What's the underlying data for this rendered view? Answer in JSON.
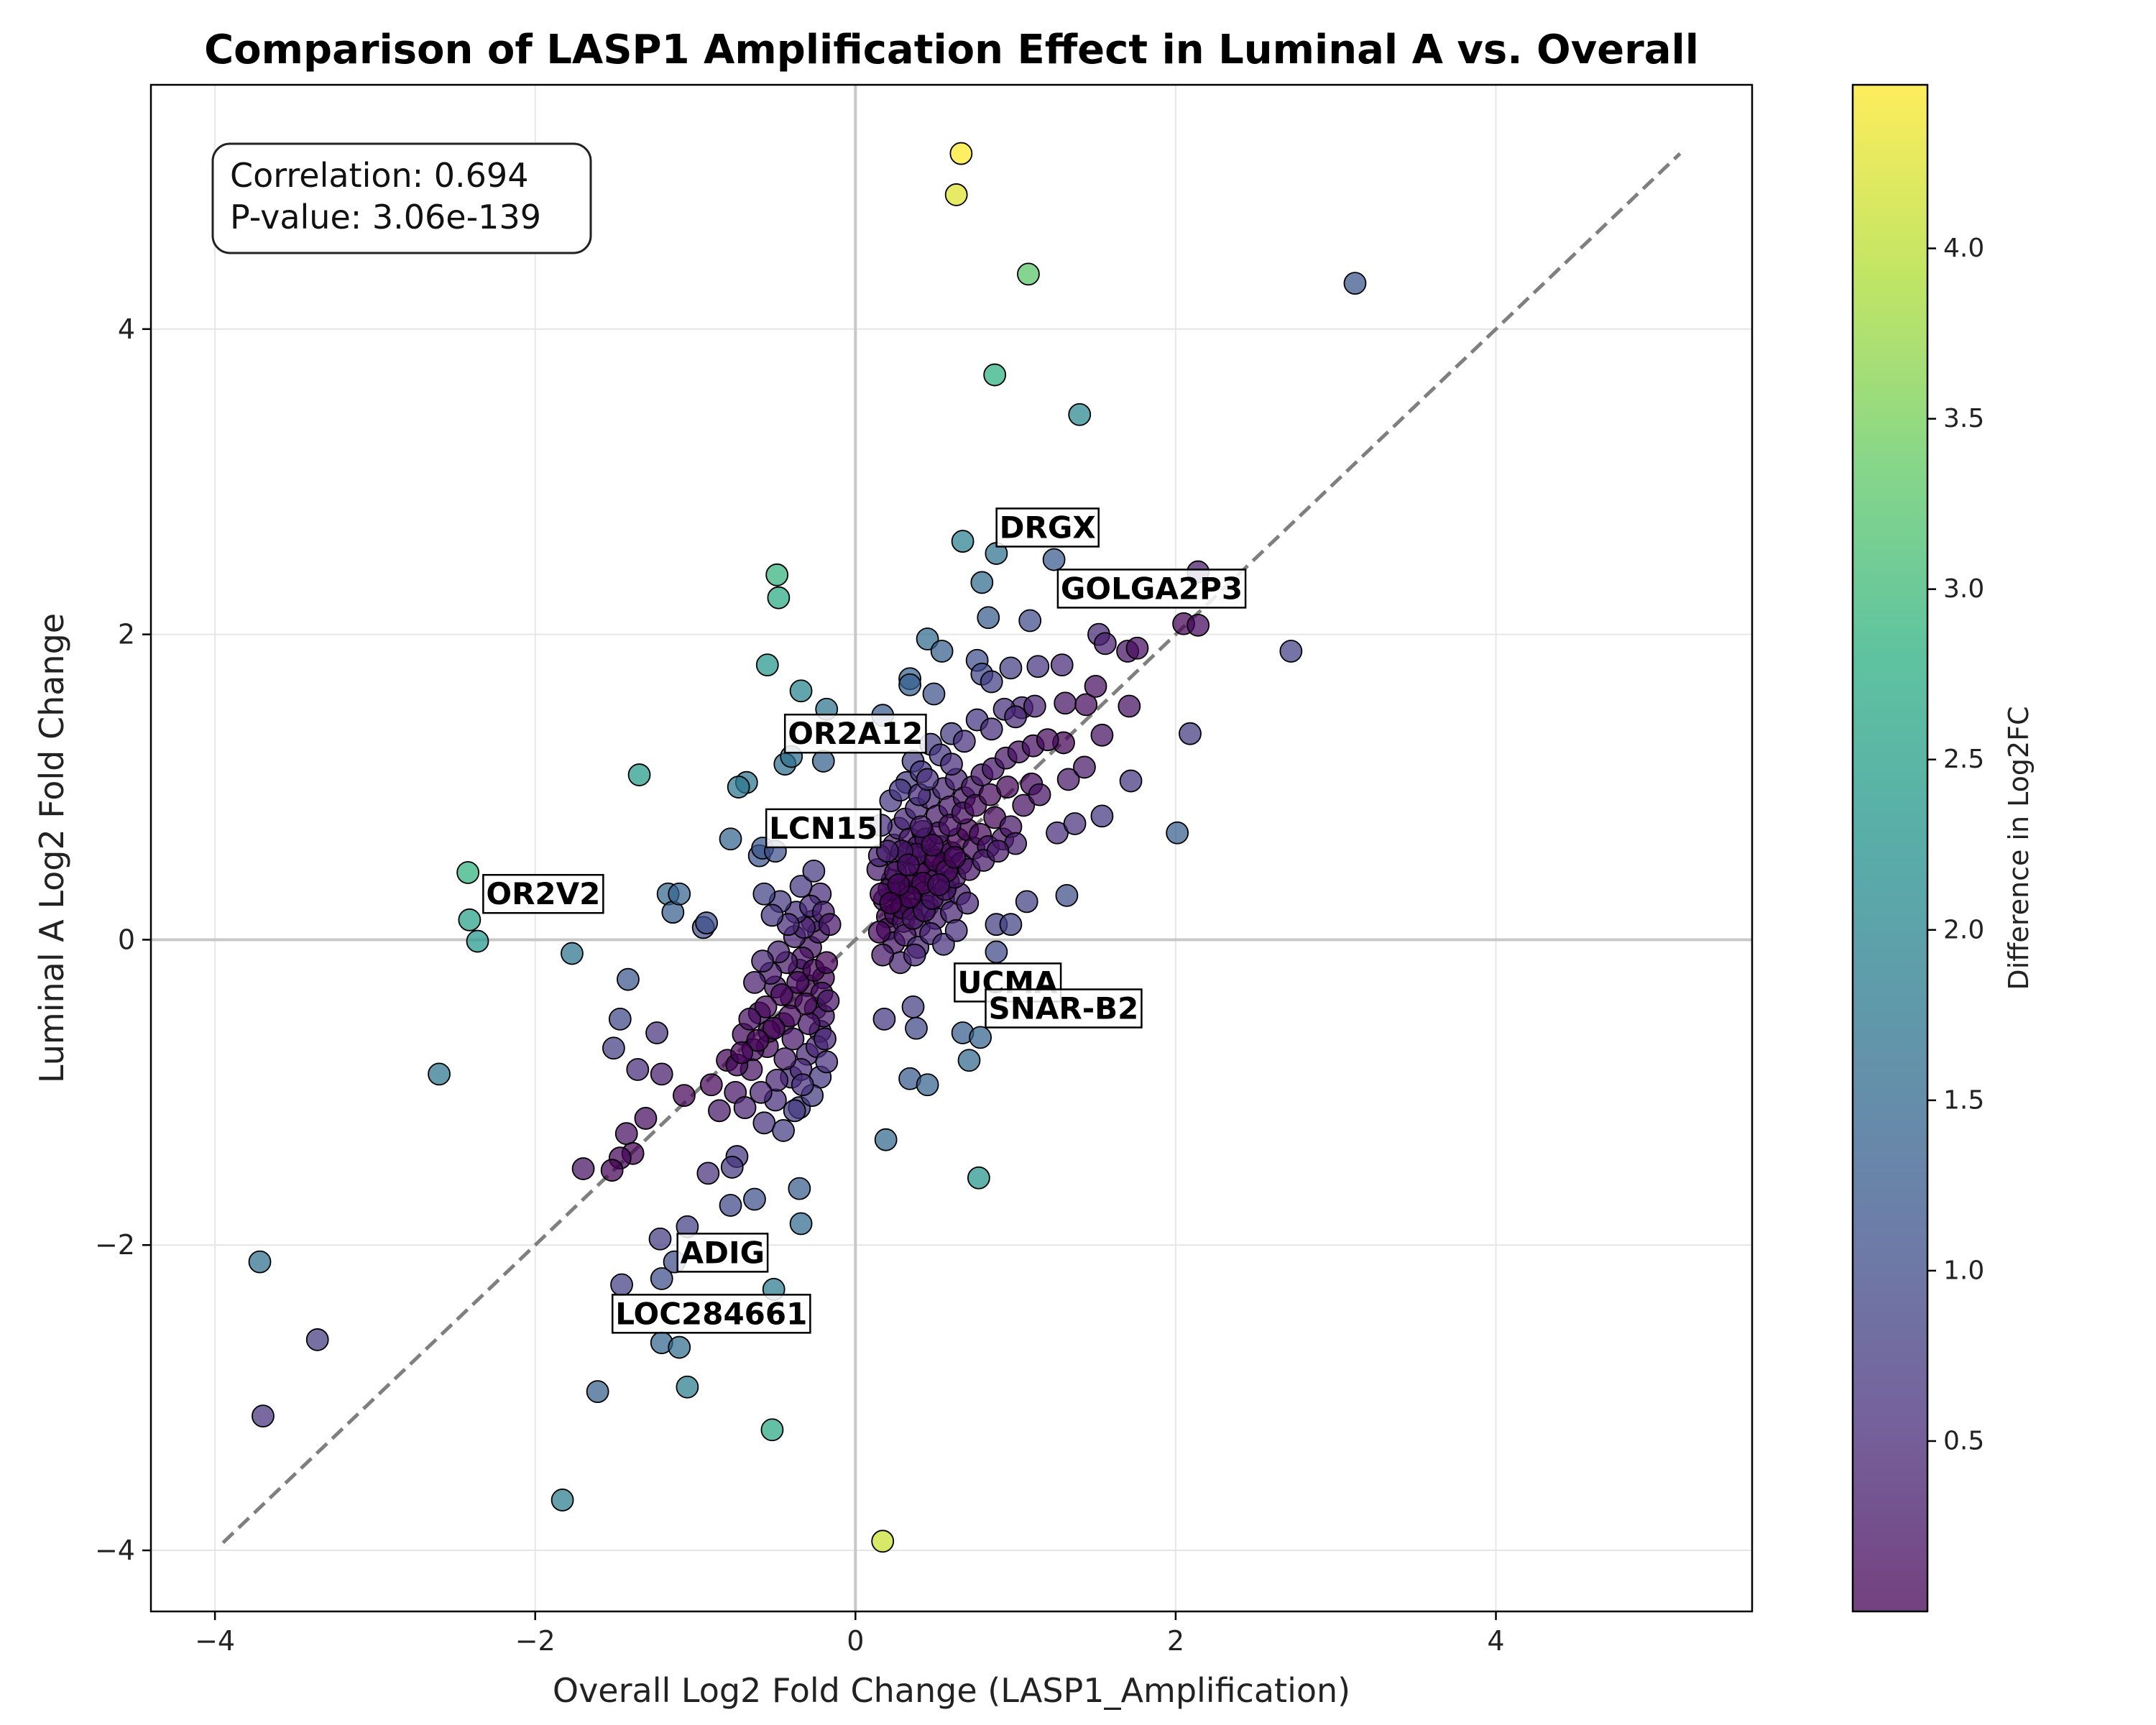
{
  "chart_data": {
    "type": "scatter",
    "title": "Comparison of LASP1 Amplification Effect in Luminal A vs. Overall",
    "xlabel": "Overall Log2 Fold Change (LASP1_Amplification)",
    "ylabel": "Luminal A Log2 Fold Change",
    "xlim": [
      -4.4,
      5.6
    ],
    "ylim": [
      -4.4,
      5.6
    ],
    "x_ticks": [
      -4,
      -2,
      0,
      2,
      4
    ],
    "y_ticks": [
      -4,
      -2,
      0,
      2,
      4
    ],
    "x_tick_labels": [
      "−4",
      "−2",
      "0",
      "2",
      "4"
    ],
    "y_tick_labels": [
      "−4",
      "−2",
      "0",
      "2",
      "4"
    ],
    "grid": true,
    "reference_line": {
      "style": "dashed",
      "from": [
        -3.95,
        -3.95
      ],
      "to": [
        5.15,
        5.15
      ],
      "color": "#7f7f7f"
    },
    "zero_lines": true,
    "stats_box": {
      "lines": [
        "Correlation: 0.694",
        "P-value: 3.06e-139"
      ]
    },
    "colorbar": {
      "label": "Difference in Log2FC",
      "colormap": "viridis",
      "range": [
        0.0,
        4.48
      ],
      "ticks": [
        0.5,
        1.0,
        1.5,
        2.0,
        2.5,
        3.0,
        3.5,
        4.0
      ],
      "tick_labels": [
        "0.5",
        "1.0",
        "1.5",
        "2.0",
        "2.5",
        "3.0",
        "3.5",
        "4.0"
      ]
    },
    "annotations": [
      {
        "text": "DRGX",
        "x": 1.2,
        "y": 2.7
      },
      {
        "text": "GOLGA2P3",
        "x": 1.85,
        "y": 2.3
      },
      {
        "text": "OR2A12",
        "x": 0.0,
        "y": 1.35
      },
      {
        "text": "LCN15",
        "x": -0.2,
        "y": 0.73
      },
      {
        "text": "OR2V2",
        "x": -1.95,
        "y": 0.3
      },
      {
        "text": "UCMA",
        "x": 0.95,
        "y": -0.28
      },
      {
        "text": "SNAR-B2",
        "x": 1.3,
        "y": -0.45
      },
      {
        "text": "ADIG",
        "x": -0.83,
        "y": -2.05
      },
      {
        "text": "LOC284661",
        "x": -0.9,
        "y": -2.45
      }
    ],
    "points": [
      [
        0.66,
        5.15
      ],
      [
        0.63,
        4.88
      ],
      [
        1.08,
        4.36
      ],
      [
        3.12,
        4.3
      ],
      [
        0.87,
        3.7
      ],
      [
        1.4,
        3.44
      ],
      [
        0.67,
        2.61
      ],
      [
        0.88,
        2.53
      ],
      [
        1.24,
        2.49
      ],
      [
        2.14,
        2.41
      ],
      [
        -0.49,
        2.39
      ],
      [
        -0.48,
        2.24
      ],
      [
        0.79,
        2.34
      ],
      [
        0.83,
        2.11
      ],
      [
        1.09,
        2.09
      ],
      [
        1.52,
        2.0
      ],
      [
        1.56,
        1.94
      ],
      [
        1.7,
        1.89
      ],
      [
        1.76,
        1.91
      ],
      [
        2.05,
        2.07
      ],
      [
        2.14,
        2.06
      ],
      [
        2.72,
        1.89
      ],
      [
        0.45,
        1.97
      ],
      [
        0.54,
        1.89
      ],
      [
        -0.55,
        1.8
      ],
      [
        0.76,
        1.83
      ],
      [
        0.79,
        1.74
      ],
      [
        0.85,
        1.69
      ],
      [
        0.97,
        1.78
      ],
      [
        1.14,
        1.79
      ],
      [
        1.29,
        1.8
      ],
      [
        0.34,
        1.71
      ],
      [
        0.34,
        1.67
      ],
      [
        0.49,
        1.61
      ],
      [
        -0.34,
        1.63
      ],
      [
        -0.18,
        1.51
      ],
      [
        0.17,
        1.47
      ],
      [
        1.04,
        1.52
      ],
      [
        1.12,
        1.53
      ],
      [
        1.31,
        1.55
      ],
      [
        1.44,
        1.54
      ],
      [
        1.5,
        1.66
      ],
      [
        1.54,
        1.34
      ],
      [
        1.71,
        1.53
      ],
      [
        2.09,
        1.35
      ],
      [
        -1.35,
        1.08
      ],
      [
        -0.68,
        1.03
      ],
      [
        -0.73,
        1.0
      ],
      [
        -0.44,
        1.15
      ],
      [
        -0.4,
        1.2
      ],
      [
        -0.2,
        1.17
      ],
      [
        1.3,
        1.29
      ],
      [
        1.33,
        1.05
      ],
      [
        1.43,
        1.13
      ],
      [
        1.72,
        1.04
      ],
      [
        -0.78,
        0.66
      ],
      [
        -0.6,
        0.55
      ],
      [
        -0.58,
        0.6
      ],
      [
        -0.5,
        0.58
      ],
      [
        1.26,
        0.7
      ],
      [
        1.37,
        0.76
      ],
      [
        1.54,
        0.81
      ],
      [
        2.01,
        0.7
      ],
      [
        -2.42,
        0.44
      ],
      [
        -2.41,
        0.13
      ],
      [
        -2.36,
        -0.01
      ],
      [
        -1.17,
        0.3
      ],
      [
        -1.14,
        0.18
      ],
      [
        -1.1,
        0.3
      ],
      [
        -0.95,
        0.08
      ],
      [
        -0.93,
        0.11
      ],
      [
        -1.77,
        -0.09
      ],
      [
        -1.42,
        -0.26
      ],
      [
        1.07,
        0.25
      ],
      [
        1.32,
        0.29
      ],
      [
        0.88,
        0.1
      ],
      [
        0.97,
        0.1
      ],
      [
        0.88,
        -0.08
      ],
      [
        -2.6,
        -0.88
      ],
      [
        -1.51,
        -0.71
      ],
      [
        -1.47,
        -0.52
      ],
      [
        -1.24,
        -0.61
      ],
      [
        -1.36,
        -0.85
      ],
      [
        -1.21,
        -0.88
      ],
      [
        -1.07,
        -1.02
      ],
      [
        -1.31,
        -1.17
      ],
      [
        -1.43,
        -1.27
      ],
      [
        -1.39,
        -1.4
      ],
      [
        -1.47,
        -1.43
      ],
      [
        -1.7,
        -1.5
      ],
      [
        -1.52,
        -1.51
      ],
      [
        -0.74,
        -1.42
      ],
      [
        -0.77,
        -1.49
      ],
      [
        -0.92,
        -1.53
      ],
      [
        -0.78,
        -1.74
      ],
      [
        -0.63,
        -1.7
      ],
      [
        -0.35,
        -1.63
      ],
      [
        -0.34,
        -1.86
      ],
      [
        0.19,
        -1.31
      ],
      [
        0.34,
        -0.91
      ],
      [
        0.45,
        -0.95
      ],
      [
        0.67,
        -0.61
      ],
      [
        0.71,
        -0.79
      ],
      [
        0.78,
        -0.64
      ],
      [
        0.77,
        -1.56
      ],
      [
        0.18,
        -0.52
      ],
      [
        0.36,
        -0.44
      ],
      [
        0.38,
        -0.58
      ],
      [
        -1.22,
        -1.96
      ],
      [
        -1.05,
        -1.88
      ],
      [
        -1.13,
        -2.11
      ],
      [
        -1.21,
        -2.22
      ],
      [
        -1.46,
        -2.26
      ],
      [
        -0.51,
        -2.29
      ],
      [
        -1.21,
        -2.64
      ],
      [
        -1.1,
        -2.67
      ],
      [
        -1.61,
        -2.96
      ],
      [
        -1.05,
        -2.93
      ],
      [
        -0.52,
        -3.21
      ],
      [
        -1.83,
        -3.67
      ],
      [
        -3.72,
        -2.11
      ],
      [
        -3.36,
        -2.62
      ],
      [
        -3.7,
        -3.12
      ],
      [
        0.17,
        -3.94
      ],
      [
        0.23,
        0.39
      ],
      [
        0.14,
        0.46
      ],
      [
        0.18,
        0.26
      ],
      [
        0.26,
        0.31
      ],
      [
        0.2,
        0.15
      ],
      [
        0.29,
        0.34
      ],
      [
        0.32,
        0.43
      ],
      [
        0.35,
        0.25
      ],
      [
        0.37,
        0.37
      ],
      [
        0.4,
        0.48
      ],
      [
        0.43,
        0.31
      ],
      [
        0.45,
        0.44
      ],
      [
        0.47,
        0.55
      ],
      [
        0.5,
        0.39
      ],
      [
        0.53,
        0.61
      ],
      [
        0.55,
        0.49
      ],
      [
        0.58,
        0.38
      ],
      [
        0.6,
        0.57
      ],
      [
        0.64,
        0.66
      ],
      [
        0.66,
        0.5
      ],
      [
        0.7,
        0.72
      ],
      [
        0.74,
        0.6
      ],
      [
        0.78,
        0.69
      ],
      [
        0.83,
        0.61
      ],
      [
        0.87,
        0.8
      ],
      [
        0.92,
        0.66
      ],
      [
        0.97,
        0.74
      ],
      [
        1.0,
        0.63
      ],
      [
        0.24,
        0.62
      ],
      [
        0.27,
        0.73
      ],
      [
        0.31,
        0.79
      ],
      [
        0.34,
        0.66
      ],
      [
        0.38,
        0.86
      ],
      [
        0.42,
        0.71
      ],
      [
        0.46,
        0.93
      ],
      [
        0.51,
        0.81
      ],
      [
        0.55,
        0.99
      ],
      [
        0.59,
        0.87
      ],
      [
        0.63,
        1.05
      ],
      [
        0.68,
        0.93
      ],
      [
        0.73,
        1.0
      ],
      [
        0.79,
        1.08
      ],
      [
        0.86,
        1.12
      ],
      [
        0.94,
        1.19
      ],
      [
        1.02,
        1.23
      ],
      [
        1.11,
        1.27
      ],
      [
        1.2,
        1.31
      ],
      [
        0.32,
        1.03
      ],
      [
        0.36,
        1.17
      ],
      [
        0.41,
        1.1
      ],
      [
        0.47,
        1.28
      ],
      [
        0.53,
        1.21
      ],
      [
        0.6,
        1.35
      ],
      [
        0.68,
        1.3
      ],
      [
        0.76,
        1.44
      ],
      [
        0.85,
        1.38
      ],
      [
        0.93,
        1.51
      ],
      [
        1.0,
        1.46
      ],
      [
        0.22,
        0.91
      ],
      [
        0.28,
        0.98
      ],
      [
        0.2,
        0.07
      ],
      [
        0.25,
        0.17
      ],
      [
        0.3,
        0.12
      ],
      [
        0.35,
        0.2
      ],
      [
        0.4,
        0.09
      ],
      [
        0.45,
        0.22
      ],
      [
        0.5,
        0.14
      ],
      [
        0.55,
        0.27
      ],
      [
        0.6,
        0.18
      ],
      [
        0.65,
        0.3
      ],
      [
        0.7,
        0.24
      ],
      [
        0.24,
        -0.02
      ],
      [
        0.31,
        0.03
      ],
      [
        0.39,
        -0.05
      ],
      [
        0.47,
        0.04
      ],
      [
        0.55,
        -0.03
      ],
      [
        0.63,
        0.06
      ],
      [
        0.28,
        -0.15
      ],
      [
        0.37,
        -0.1
      ],
      [
        0.21,
        0.33
      ],
      [
        0.26,
        0.52
      ],
      [
        0.29,
        0.21
      ],
      [
        0.33,
        0.57
      ],
      [
        0.36,
        0.14
      ],
      [
        0.39,
        0.61
      ],
      [
        0.43,
        0.19
      ],
      [
        0.44,
        0.66
      ],
      [
        0.48,
        0.27
      ],
      [
        0.52,
        0.7
      ],
      [
        0.56,
        0.33
      ],
      [
        0.59,
        0.75
      ],
      [
        0.62,
        0.41
      ],
      [
        0.67,
        0.83
      ],
      [
        0.71,
        0.46
      ],
      [
        0.75,
        0.88
      ],
      [
        0.8,
        0.52
      ],
      [
        0.84,
        0.95
      ],
      [
        0.89,
        0.58
      ],
      [
        0.95,
        1.0
      ],
      [
        1.05,
        0.88
      ],
      [
        1.1,
        1.02
      ],
      [
        1.15,
        0.95
      ],
      [
        -0.3,
        -0.3
      ],
      [
        -0.25,
        -0.45
      ],
      [
        -0.35,
        -0.2
      ],
      [
        -0.4,
        -0.38
      ],
      [
        -0.2,
        -0.25
      ],
      [
        -0.45,
        -0.55
      ],
      [
        -0.5,
        -0.31
      ],
      [
        -0.22,
        -0.6
      ],
      [
        -0.55,
        -0.7
      ],
      [
        -0.3,
        -0.75
      ],
      [
        -0.6,
        -0.48
      ],
      [
        -0.65,
        -0.85
      ],
      [
        -0.4,
        -0.9
      ],
      [
        -0.7,
        -0.62
      ],
      [
        -0.75,
        -1.0
      ],
      [
        -0.5,
        -1.05
      ],
      [
        -0.8,
        -0.79
      ],
      [
        -0.85,
        -1.12
      ],
      [
        -0.57,
        -1.2
      ],
      [
        -0.9,
        -0.95
      ],
      [
        -0.35,
        -1.1
      ],
      [
        -0.45,
        -1.25
      ],
      [
        -0.28,
        -0.05
      ],
      [
        -0.33,
        -0.12
      ],
      [
        -0.38,
        0.02
      ],
      [
        -0.43,
        -0.15
      ],
      [
        -0.48,
        -0.08
      ],
      [
        -0.53,
        -0.22
      ],
      [
        -0.58,
        -0.14
      ],
      [
        -0.63,
        -0.28
      ],
      [
        -0.23,
        0.05
      ],
      [
        -0.27,
        0.12
      ],
      [
        -0.32,
        0.08
      ],
      [
        -0.37,
        0.18
      ],
      [
        -0.42,
        0.1
      ],
      [
        -0.47,
        0.25
      ],
      [
        -0.52,
        0.16
      ],
      [
        -0.57,
        0.3
      ],
      [
        -0.2,
        -0.5
      ],
      [
        -0.24,
        -0.7
      ],
      [
        -0.29,
        -0.55
      ],
      [
        -0.34,
        -0.85
      ],
      [
        -0.39,
        -0.65
      ],
      [
        -0.44,
        -0.78
      ],
      [
        -0.49,
        -0.92
      ],
      [
        -0.54,
        -0.6
      ],
      [
        -0.59,
        -1.0
      ],
      [
        -0.64,
        -0.72
      ],
      [
        -0.69,
        -1.1
      ],
      [
        -0.74,
        -0.82
      ],
      [
        -0.21,
        -0.35
      ],
      [
        -0.26,
        -0.2
      ],
      [
        -0.31,
        -0.42
      ],
      [
        -0.36,
        -0.28
      ],
      [
        -0.41,
        -0.5
      ],
      [
        -0.46,
        -0.36
      ],
      [
        -0.51,
        -0.58
      ],
      [
        -0.56,
        -0.44
      ],
      [
        -0.61,
        -0.66
      ],
      [
        -0.66,
        -0.52
      ],
      [
        -0.71,
        -0.74
      ],
      [
        -0.22,
        -0.9
      ],
      [
        -0.27,
        -1.02
      ],
      [
        -0.33,
        -0.95
      ],
      [
        -0.38,
        -1.12
      ],
      [
        -0.22,
        0.3
      ],
      [
        -0.28,
        0.22
      ],
      [
        -0.34,
        0.35
      ],
      [
        -0.26,
        0.45
      ],
      [
        -0.2,
        0.18
      ],
      [
        -0.18,
        -0.15
      ],
      [
        -0.17,
        -0.4
      ],
      [
        -0.19,
        -0.65
      ],
      [
        -0.18,
        -0.8
      ],
      [
        -0.16,
        0.1
      ],
      [
        0.15,
        0.05
      ],
      [
        0.16,
        0.3
      ],
      [
        0.17,
        -0.1
      ],
      [
        0.15,
        0.55
      ],
      [
        0.16,
        0.75
      ],
      [
        0.4,
        0.95
      ],
      [
        0.45,
        1.05
      ],
      [
        0.6,
        1.15
      ],
      [
        0.38,
        0.56
      ],
      [
        0.5,
        0.52
      ],
      [
        0.42,
        0.37
      ],
      [
        0.57,
        0.45
      ],
      [
        0.48,
        0.62
      ],
      [
        0.62,
        0.54
      ],
      [
        0.52,
        0.36
      ],
      [
        0.34,
        0.28
      ],
      [
        0.41,
        0.74
      ],
      [
        0.25,
        0.44
      ],
      [
        0.29,
        0.58
      ],
      [
        0.33,
        0.49
      ],
      [
        0.27,
        0.36
      ],
      [
        0.2,
        0.58
      ],
      [
        0.22,
        0.24
      ]
    ]
  }
}
